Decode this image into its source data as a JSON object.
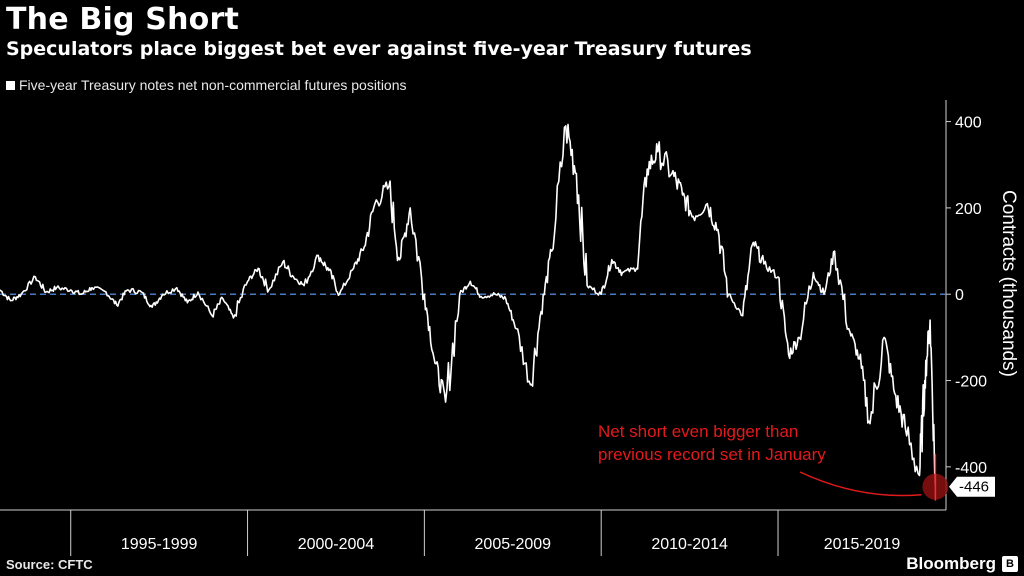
{
  "chart_data": {
    "type": "line",
    "title": "The Big Short",
    "subtitle": "Speculators place biggest bet ever against five-year Treasury futures",
    "legend": [
      "Five-year Treasury notes net non-commercial futures positions"
    ],
    "ylabel": "Contracts (thousands)",
    "ylim": [
      -500,
      450
    ],
    "yticks": [
      400,
      200,
      0,
      -200,
      -400
    ],
    "x_categories": [
      "1995-1999",
      "2000-2004",
      "2005-2009",
      "2010-2014",
      "2015-2019"
    ],
    "xlim": [
      1993.0,
      2019.75
    ],
    "reference_line": {
      "y": 0,
      "style": "dashed",
      "color": "#4a78c2"
    },
    "series": [
      {
        "name": "Five-year Treasury notes net non-commercial futures positions",
        "color": "#ffffff",
        "x": [
          1993.0,
          1993.3,
          1993.6,
          1994.0,
          1994.3,
          1994.6,
          1995.0,
          1995.3,
          1995.6,
          1996.0,
          1996.3,
          1996.6,
          1997.0,
          1997.3,
          1997.6,
          1998.0,
          1998.3,
          1998.6,
          1999.0,
          1999.3,
          1999.6,
          2000.0,
          2000.3,
          2000.6,
          2001.0,
          2001.3,
          2001.6,
          2002.0,
          2002.3,
          2002.6,
          2003.0,
          2003.3,
          2003.6,
          2004.0,
          2004.3,
          2004.6,
          2005.0,
          2005.3,
          2005.6,
          2006.0,
          2006.3,
          2006.6,
          2007.0,
          2007.3,
          2007.6,
          2008.0,
          2008.3,
          2008.6,
          2009.0,
          2009.3,
          2009.6,
          2010.0,
          2010.3,
          2010.6,
          2011.0,
          2011.3,
          2011.6,
          2012.0,
          2012.3,
          2012.6,
          2013.0,
          2013.3,
          2013.6,
          2014.0,
          2014.3,
          2014.6,
          2015.0,
          2015.3,
          2015.6,
          2016.0,
          2016.3,
          2016.6,
          2017.0,
          2017.3,
          2017.6,
          2018.0,
          2018.3,
          2018.6,
          2019.0,
          2019.15,
          2019.3,
          2019.45
        ],
        "values": [
          10,
          -15,
          0,
          40,
          5,
          15,
          10,
          0,
          15,
          5,
          -25,
          10,
          5,
          -30,
          0,
          15,
          -20,
          5,
          -50,
          -10,
          -55,
          30,
          60,
          10,
          75,
          40,
          20,
          90,
          55,
          0,
          60,
          110,
          210,
          250,
          80,
          200,
          0,
          -160,
          -250,
          0,
          30,
          -5,
          0,
          -10,
          -80,
          -210,
          -40,
          100,
          390,
          280,
          20,
          0,
          80,
          50,
          60,
          290,
          330,
          280,
          230,
          180,
          210,
          150,
          0,
          -50,
          120,
          70,
          40,
          -140,
          -100,
          50,
          0,
          100,
          -80,
          -150,
          -300,
          -100,
          -230,
          -310,
          -420,
          -200,
          -60,
          -446
        ]
      }
    ],
    "callout": {
      "label": "-446"
    },
    "annotation": "Net short even bigger than previous record set in January"
  },
  "legend_label": "Five-year Treasury notes net non-commercial futures positions",
  "footer": {
    "source": "Source: CFTC",
    "brand": "Bloomberg",
    "brand_mark": "B"
  }
}
